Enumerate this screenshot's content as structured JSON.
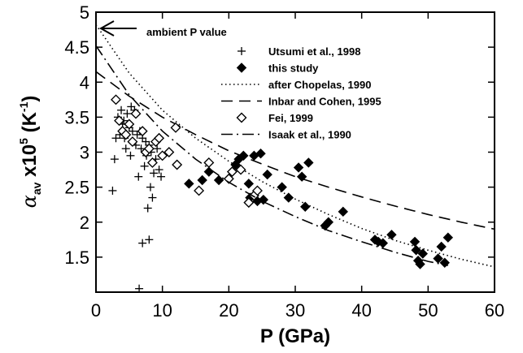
{
  "chart_data": {
    "type": "scatter",
    "xlabel": "P (GPa)",
    "ylabel": {
      "alpha": "α",
      "alpha_sub": "av",
      "times": "x10",
      "exp": "5",
      "unit_open": "(K",
      "unit_exp": "-1",
      "unit_close": ")"
    },
    "xlim": [
      0,
      60
    ],
    "ylim": [
      1.0,
      5.0
    ],
    "xticks": [
      "0",
      "10",
      "20",
      "30",
      "40",
      "50",
      "60"
    ],
    "yticks": [
      "1.5",
      "2",
      "2.5",
      "3",
      "3.5",
      "4",
      "4.5",
      "5"
    ],
    "annotation": {
      "text": "ambient P value",
      "x": 0,
      "y": 4.8
    },
    "legend_position": "upper-right",
    "series": [
      {
        "name": "Utsumi et al., 1998",
        "marker": "plus",
        "points": [
          [
            2.5,
            2.45
          ],
          [
            2.8,
            2.9
          ],
          [
            3,
            3.2
          ],
          [
            3.3,
            3.5
          ],
          [
            3.6,
            3.25
          ],
          [
            3.8,
            3.6
          ],
          [
            4,
            3.4
          ],
          [
            4.3,
            3.2
          ],
          [
            4.5,
            3.05
          ],
          [
            4.7,
            3.55
          ],
          [
            5,
            3.35
          ],
          [
            5.2,
            2.95
          ],
          [
            5.5,
            3.3
          ],
          [
            5.8,
            3.6
          ],
          [
            6,
            3.1
          ],
          [
            6.2,
            3.25
          ],
          [
            6.4,
            2.65
          ],
          [
            6.5,
            1.05
          ],
          [
            6.8,
            3.05
          ],
          [
            7,
            3.2
          ],
          [
            7,
            1.7
          ],
          [
            7.3,
            2.8
          ],
          [
            7.6,
            2.95
          ],
          [
            7.8,
            2.2
          ],
          [
            8,
            3.1
          ],
          [
            8,
            1.75
          ],
          [
            8.2,
            2.5
          ],
          [
            8.5,
            2.35
          ],
          [
            8.7,
            2.7
          ],
          [
            9,
            2.9
          ],
          [
            9.2,
            3.05
          ],
          [
            9.5,
            2.75
          ],
          [
            9.8,
            2.65
          ],
          [
            4.2,
            3.45
          ],
          [
            5.3,
            3.65
          ],
          [
            6.6,
            3.3
          ],
          [
            7.5,
            3.15
          ],
          [
            8.3,
            3.0
          ]
        ]
      },
      {
        "name": "this study",
        "marker": "diamond-filled",
        "points": [
          [
            14,
            2.55
          ],
          [
            16,
            2.6
          ],
          [
            17,
            2.72
          ],
          [
            18.5,
            2.6
          ],
          [
            21,
            2.82
          ],
          [
            21.5,
            2.9
          ],
          [
            22.2,
            2.95
          ],
          [
            23,
            2.55
          ],
          [
            23.2,
            2.35
          ],
          [
            23.8,
            2.95
          ],
          [
            24.3,
            2.3
          ],
          [
            24.8,
            2.98
          ],
          [
            25.2,
            2.32
          ],
          [
            25.8,
            2.68
          ],
          [
            28,
            2.5
          ],
          [
            29,
            2.35
          ],
          [
            30.5,
            2.78
          ],
          [
            31,
            2.65
          ],
          [
            31.5,
            2.22
          ],
          [
            32,
            2.85
          ],
          [
            34.5,
            1.95
          ],
          [
            35,
            2.0
          ],
          [
            37.2,
            2.15
          ],
          [
            42,
            1.75
          ],
          [
            42.5,
            1.72
          ],
          [
            43.2,
            1.7
          ],
          [
            44.5,
            1.82
          ],
          [
            48,
            1.72
          ],
          [
            48.2,
            1.6
          ],
          [
            48.5,
            1.45
          ],
          [
            48.8,
            1.4
          ],
          [
            49.2,
            1.55
          ],
          [
            51.5,
            1.48
          ],
          [
            52,
            1.65
          ],
          [
            52.5,
            1.42
          ],
          [
            53,
            1.78
          ]
        ]
      },
      {
        "name": "after Chopelas, 1990",
        "line": "dotted",
        "points": [
          [
            0,
            4.82
          ],
          [
            5,
            4.13
          ],
          [
            10,
            3.6
          ],
          [
            15,
            3.2
          ],
          [
            20,
            2.87
          ],
          [
            25,
            2.58
          ],
          [
            30,
            2.33
          ],
          [
            35,
            2.11
          ],
          [
            40,
            1.91
          ],
          [
            45,
            1.74
          ],
          [
            50,
            1.6
          ],
          [
            55,
            1.47
          ],
          [
            60,
            1.36
          ]
        ]
      },
      {
        "name": "Inbar and Cohen, 1995",
        "line": "dashed",
        "points": [
          [
            0,
            4.15
          ],
          [
            5,
            3.8
          ],
          [
            10,
            3.5
          ],
          [
            15,
            3.25
          ],
          [
            20,
            3.02
          ],
          [
            25,
            2.83
          ],
          [
            30,
            2.65
          ],
          [
            35,
            2.5
          ],
          [
            40,
            2.36
          ],
          [
            45,
            2.23
          ],
          [
            50,
            2.11
          ],
          [
            55,
            2.0
          ],
          [
            60,
            1.9
          ]
        ]
      },
      {
        "name": "Fei, 1999",
        "marker": "diamond-open",
        "points": [
          [
            3,
            3.75
          ],
          [
            3.5,
            3.45
          ],
          [
            4,
            3.3
          ],
          [
            4.5,
            3.25
          ],
          [
            5,
            3.4
          ],
          [
            5.5,
            3.15
          ],
          [
            6,
            3.55
          ],
          [
            7,
            3.3
          ],
          [
            7.5,
            3.0
          ],
          [
            8,
            3.05
          ],
          [
            8.5,
            2.85
          ],
          [
            9,
            3.15
          ],
          [
            9.5,
            3.2
          ],
          [
            10,
            2.95
          ],
          [
            11,
            3.0
          ],
          [
            12,
            3.35
          ],
          [
            12.2,
            2.82
          ],
          [
            15.5,
            2.45
          ],
          [
            17,
            2.85
          ],
          [
            20,
            2.62
          ],
          [
            20.5,
            2.72
          ],
          [
            21.8,
            2.75
          ],
          [
            23,
            2.28
          ],
          [
            23.8,
            2.38
          ],
          [
            24.3,
            2.45
          ]
        ]
      },
      {
        "name": "Isaak et al., 1990",
        "line": "dashdot",
        "points": [
          [
            0,
            4.52
          ],
          [
            5,
            3.82
          ],
          [
            10,
            3.3
          ],
          [
            15,
            2.9
          ],
          [
            20,
            2.57
          ],
          [
            25,
            2.3
          ],
          [
            30,
            2.08
          ],
          [
            35,
            1.88
          ],
          [
            40,
            1.72
          ],
          [
            45,
            1.57
          ],
          [
            50,
            1.44
          ],
          [
            53,
            1.38
          ]
        ]
      }
    ]
  }
}
